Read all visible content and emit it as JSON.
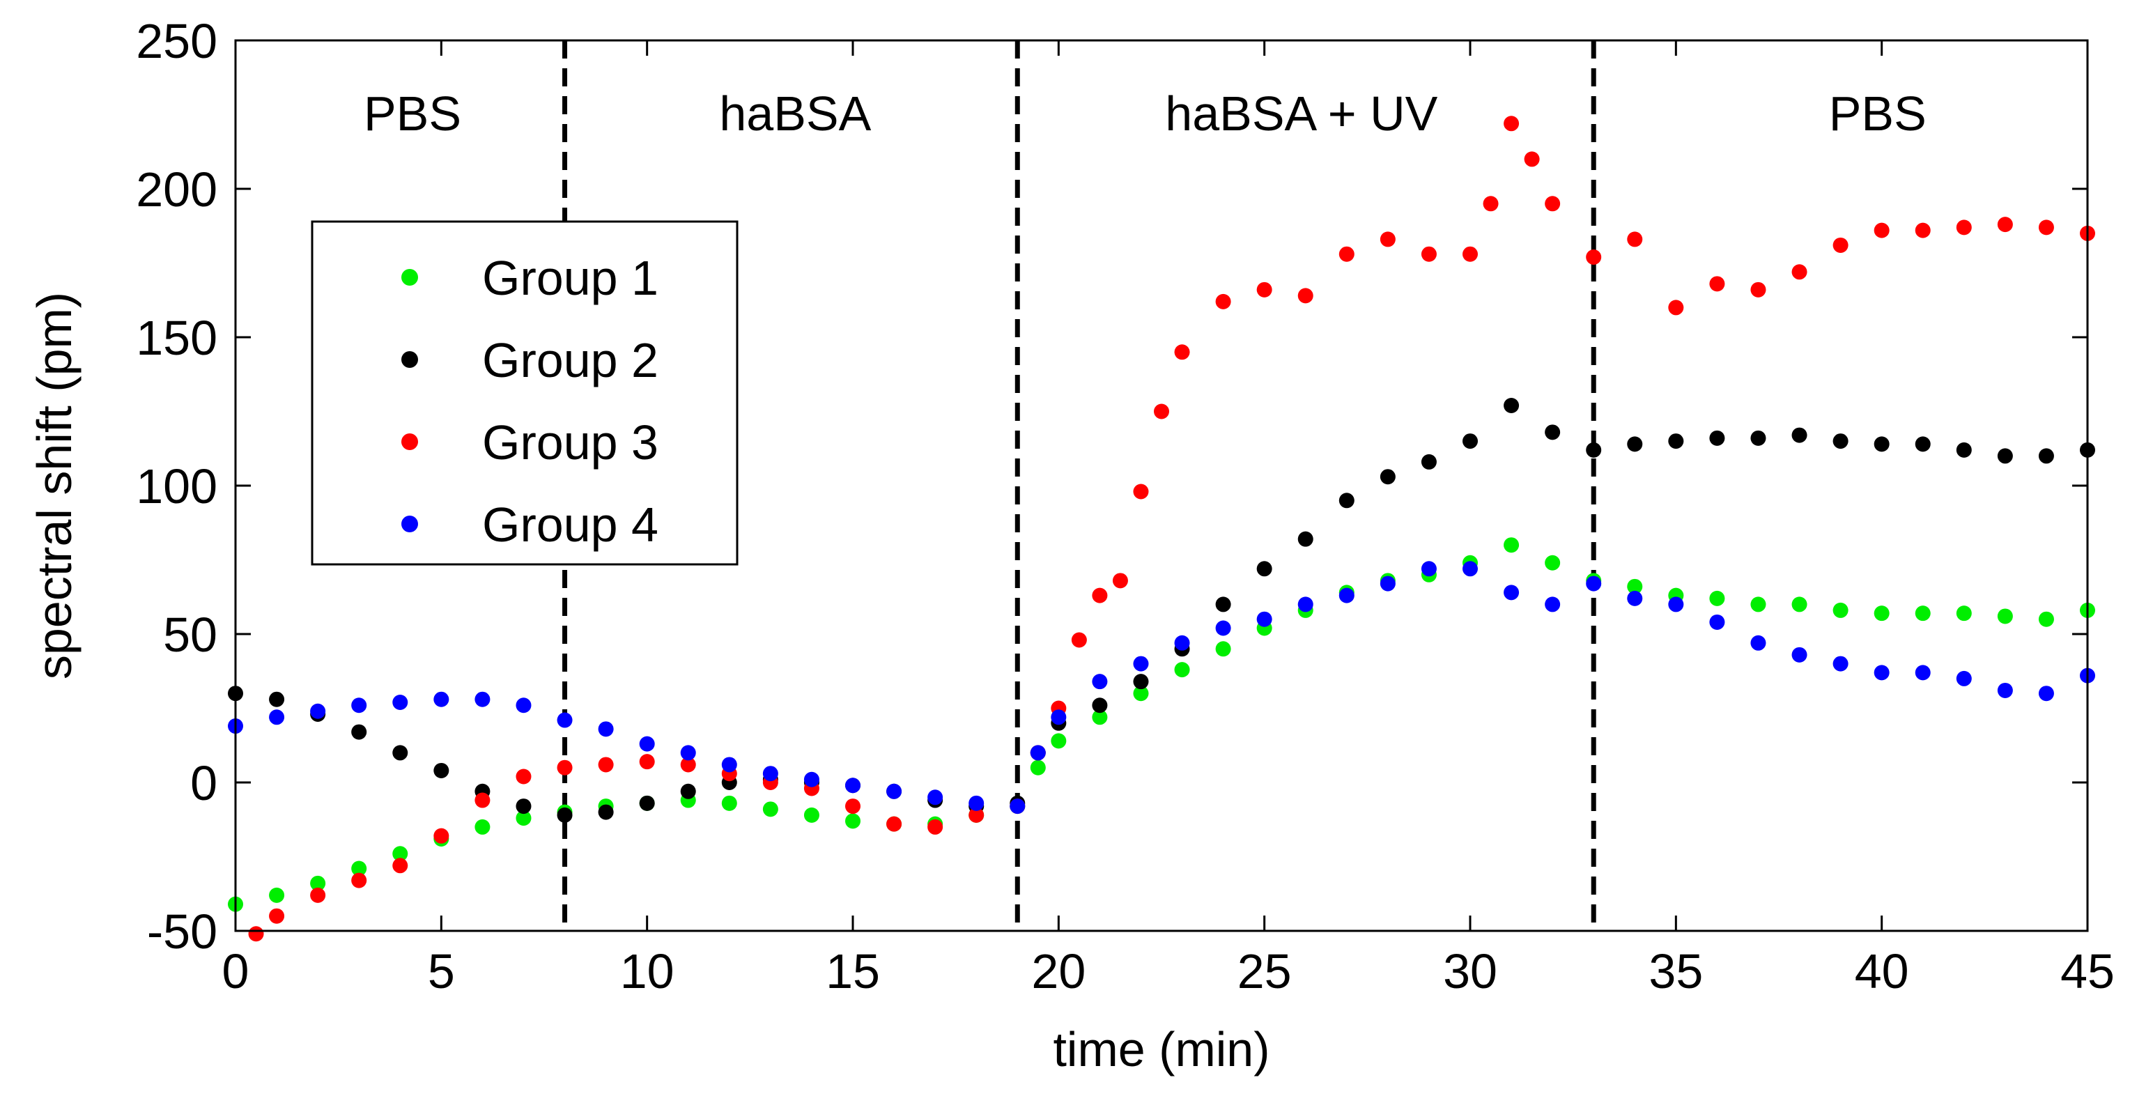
{
  "chart_data": {
    "type": "scatter",
    "title": "",
    "xlabel": "time (min)",
    "ylabel": "spectral shift (pm)",
    "xlim": [
      0,
      45
    ],
    "ylim": [
      -50,
      250
    ],
    "xticks": [
      0,
      5,
      10,
      15,
      20,
      25,
      30,
      35,
      40,
      45
    ],
    "yticks": [
      -50,
      0,
      50,
      100,
      150,
      200,
      250
    ],
    "grid": false,
    "legend_position": "upper-left",
    "phase_boundaries": [
      8,
      19,
      33
    ],
    "phases": [
      {
        "label": "PBS",
        "x": 4.3
      },
      {
        "label": "haBSA",
        "x": 13.6
      },
      {
        "label": "haBSA + UV",
        "x": 25.9
      },
      {
        "label": "PBS",
        "x": 39.9
      }
    ],
    "series": [
      {
        "name": "Group 1",
        "color": "#00ee00",
        "points": [
          [
            0,
            -41
          ],
          [
            1,
            -38
          ],
          [
            2,
            -34
          ],
          [
            3,
            -29
          ],
          [
            4,
            -24
          ],
          [
            5,
            -19
          ],
          [
            6,
            -15
          ],
          [
            7,
            -12
          ],
          [
            8,
            -10
          ],
          [
            9,
            -8
          ],
          [
            10,
            -7
          ],
          [
            11,
            -6
          ],
          [
            12,
            -7
          ],
          [
            13,
            -9
          ],
          [
            14,
            -11
          ],
          [
            15,
            -13
          ],
          [
            16,
            -14
          ],
          [
            17,
            -14
          ],
          [
            18,
            -11
          ],
          [
            19,
            -8
          ],
          [
            19.5,
            5
          ],
          [
            20,
            14
          ],
          [
            21,
            22
          ],
          [
            22,
            30
          ],
          [
            23,
            38
          ],
          [
            24,
            45
          ],
          [
            25,
            52
          ],
          [
            26,
            58
          ],
          [
            27,
            64
          ],
          [
            28,
            68
          ],
          [
            29,
            70
          ],
          [
            30,
            74
          ],
          [
            31,
            80
          ],
          [
            32,
            74
          ],
          [
            33,
            68
          ],
          [
            34,
            66
          ],
          [
            35,
            63
          ],
          [
            36,
            62
          ],
          [
            37,
            60
          ],
          [
            38,
            60
          ],
          [
            39,
            58
          ],
          [
            40,
            57
          ],
          [
            41,
            57
          ],
          [
            42,
            57
          ],
          [
            43,
            56
          ],
          [
            44,
            55
          ],
          [
            45,
            58
          ]
        ]
      },
      {
        "name": "Group 2",
        "color": "#000000",
        "points": [
          [
            0,
            30
          ],
          [
            1,
            28
          ],
          [
            2,
            23
          ],
          [
            3,
            17
          ],
          [
            4,
            10
          ],
          [
            5,
            4
          ],
          [
            6,
            -3
          ],
          [
            7,
            -8
          ],
          [
            8,
            -11
          ],
          [
            9,
            -10
          ],
          [
            10,
            -7
          ],
          [
            11,
            -3
          ],
          [
            12,
            0
          ],
          [
            13,
            1
          ],
          [
            14,
            0
          ],
          [
            15,
            -1
          ],
          [
            16,
            -3
          ],
          [
            17,
            -6
          ],
          [
            18,
            -8
          ],
          [
            19,
            -7
          ],
          [
            19.5,
            10
          ],
          [
            20,
            20
          ],
          [
            21,
            26
          ],
          [
            22,
            34
          ],
          [
            23,
            45
          ],
          [
            24,
            60
          ],
          [
            25,
            72
          ],
          [
            26,
            82
          ],
          [
            27,
            95
          ],
          [
            28,
            103
          ],
          [
            29,
            108
          ],
          [
            30,
            115
          ],
          [
            31,
            127
          ],
          [
            32,
            118
          ],
          [
            33,
            112
          ],
          [
            34,
            114
          ],
          [
            35,
            115
          ],
          [
            36,
            116
          ],
          [
            37,
            116
          ],
          [
            38,
            117
          ],
          [
            39,
            115
          ],
          [
            40,
            114
          ],
          [
            41,
            114
          ],
          [
            42,
            112
          ],
          [
            43,
            110
          ],
          [
            44,
            110
          ],
          [
            45,
            112
          ]
        ]
      },
      {
        "name": "Group 3",
        "color": "#ff0000",
        "points": [
          [
            0.5,
            -51
          ],
          [
            1,
            -45
          ],
          [
            2,
            -38
          ],
          [
            3,
            -33
          ],
          [
            4,
            -28
          ],
          [
            5,
            -18
          ],
          [
            6,
            -6
          ],
          [
            7,
            2
          ],
          [
            8,
            5
          ],
          [
            9,
            6
          ],
          [
            10,
            7
          ],
          [
            11,
            6
          ],
          [
            12,
            3
          ],
          [
            13,
            0
          ],
          [
            14,
            -2
          ],
          [
            15,
            -8
          ],
          [
            16,
            -14
          ],
          [
            17,
            -15
          ],
          [
            18,
            -11
          ],
          [
            19,
            -8
          ],
          [
            19.5,
            10
          ],
          [
            20,
            25
          ],
          [
            20.5,
            48
          ],
          [
            21,
            63
          ],
          [
            21.5,
            68
          ],
          [
            22,
            98
          ],
          [
            22.5,
            125
          ],
          [
            23,
            145
          ],
          [
            24,
            162
          ],
          [
            25,
            166
          ],
          [
            26,
            164
          ],
          [
            27,
            178
          ],
          [
            28,
            183
          ],
          [
            29,
            178
          ],
          [
            30,
            178
          ],
          [
            30.5,
            195
          ],
          [
            31,
            222
          ],
          [
            31.5,
            210
          ],
          [
            32,
            195
          ],
          [
            33,
            177
          ],
          [
            34,
            183
          ],
          [
            35,
            160
          ],
          [
            36,
            168
          ],
          [
            37,
            166
          ],
          [
            38,
            172
          ],
          [
            39,
            181
          ],
          [
            40,
            186
          ],
          [
            41,
            186
          ],
          [
            42,
            187
          ],
          [
            43,
            188
          ],
          [
            44,
            187
          ],
          [
            45,
            185
          ]
        ]
      },
      {
        "name": "Group 4",
        "color": "#0000ff",
        "points": [
          [
            0,
            19
          ],
          [
            1,
            22
          ],
          [
            2,
            24
          ],
          [
            3,
            26
          ],
          [
            4,
            27
          ],
          [
            5,
            28
          ],
          [
            6,
            28
          ],
          [
            7,
            26
          ],
          [
            8,
            21
          ],
          [
            9,
            18
          ],
          [
            10,
            13
          ],
          [
            11,
            10
          ],
          [
            12,
            6
          ],
          [
            13,
            3
          ],
          [
            14,
            1
          ],
          [
            15,
            -1
          ],
          [
            16,
            -3
          ],
          [
            17,
            -5
          ],
          [
            18,
            -7
          ],
          [
            19,
            -8
          ],
          [
            19.5,
            10
          ],
          [
            20,
            22
          ],
          [
            21,
            34
          ],
          [
            22,
            40
          ],
          [
            23,
            47
          ],
          [
            24,
            52
          ],
          [
            25,
            55
          ],
          [
            26,
            60
          ],
          [
            27,
            63
          ],
          [
            28,
            67
          ],
          [
            29,
            72
          ],
          [
            30,
            72
          ],
          [
            31,
            64
          ],
          [
            32,
            60
          ],
          [
            33,
            67
          ],
          [
            34,
            62
          ],
          [
            35,
            60
          ],
          [
            36,
            54
          ],
          [
            37,
            47
          ],
          [
            38,
            43
          ],
          [
            39,
            40
          ],
          [
            40,
            37
          ],
          [
            41,
            37
          ],
          [
            42,
            35
          ],
          [
            43,
            31
          ],
          [
            44,
            30
          ],
          [
            45,
            36
          ]
        ]
      }
    ]
  }
}
